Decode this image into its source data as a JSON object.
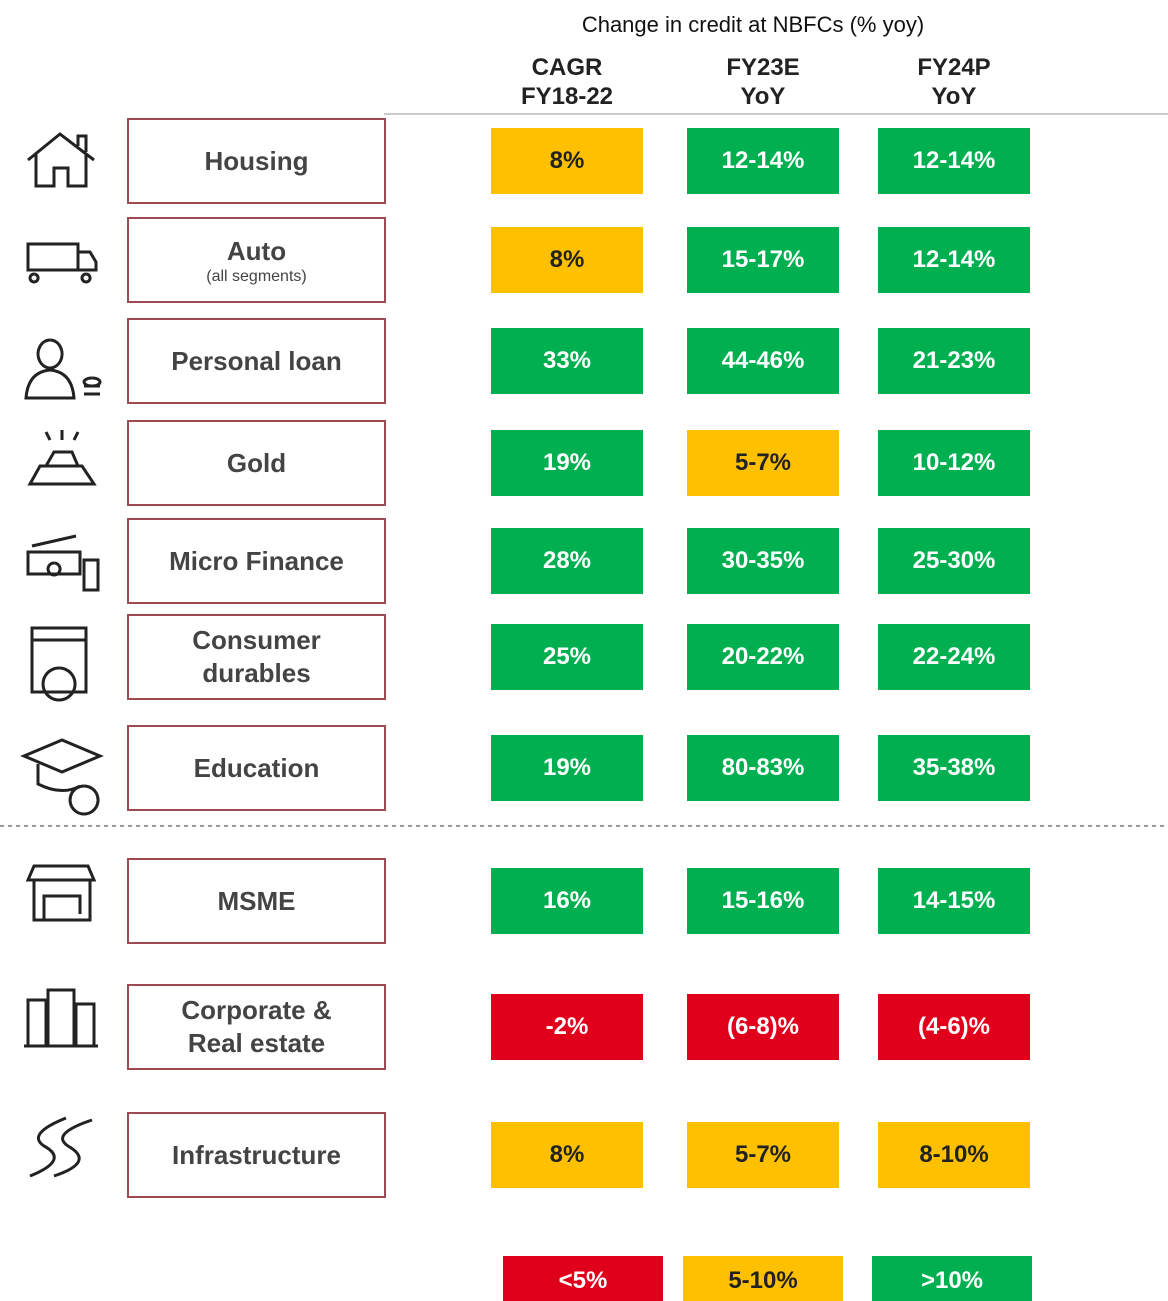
{
  "header": {
    "title": "Change in credit at NBFCs (% yoy)"
  },
  "columns": [
    [
      "CAGR",
      "FY18-22"
    ],
    [
      "FY23E",
      "YoY"
    ],
    [
      "FY24P",
      "YoY"
    ]
  ],
  "rows": [
    {
      "label": [
        "Housing"
      ],
      "cells": [
        {
          "text": "8%",
          "color": "#ffc000"
        },
        {
          "text": "12-14%",
          "color": "#00b050"
        },
        {
          "text": "12-14%",
          "color": "#00b050"
        }
      ]
    },
    {
      "label": [
        "Auto"
      ],
      "sublabel": "(all segments)",
      "cells": [
        {
          "text": "8%",
          "color": "#ffc000"
        },
        {
          "text": "15-17%",
          "color": "#00b050"
        },
        {
          "text": "12-14%",
          "color": "#00b050"
        }
      ]
    },
    {
      "label": [
        "Personal loan"
      ],
      "cells": [
        {
          "text": "33%",
          "color": "#00b050"
        },
        {
          "text": "44-46%",
          "color": "#00b050"
        },
        {
          "text": "21-23%",
          "color": "#00b050"
        }
      ]
    },
    {
      "label": [
        "Gold"
      ],
      "cells": [
        {
          "text": "19%",
          "color": "#00b050"
        },
        {
          "text": "5-7%",
          "color": "#ffc000"
        },
        {
          "text": "10-12%",
          "color": "#00b050"
        }
      ]
    },
    {
      "label": [
        "Micro Finance"
      ],
      "cells": [
        {
          "text": "28%",
          "color": "#00b050"
        },
        {
          "text": "30-35%",
          "color": "#00b050"
        },
        {
          "text": "25-30%",
          "color": "#00b050"
        }
      ]
    },
    {
      "label": [
        "Consumer",
        "durables"
      ],
      "cells": [
        {
          "text": "25%",
          "color": "#00b050"
        },
        {
          "text": "20-22%",
          "color": "#00b050"
        },
        {
          "text": "22-24%",
          "color": "#00b050"
        }
      ]
    },
    {
      "label": [
        "Education"
      ],
      "cells": [
        {
          "text": "19%",
          "color": "#00b050"
        },
        {
          "text": "80-83%",
          "color": "#00b050"
        },
        {
          "text": "35-38%",
          "color": "#00b050"
        }
      ]
    },
    {
      "label": [
        "MSME"
      ],
      "cells": [
        {
          "text": "16%",
          "color": "#00b050"
        },
        {
          "text": "15-16%",
          "color": "#00b050"
        },
        {
          "text": "14-15%",
          "color": "#00b050"
        }
      ]
    },
    {
      "label": [
        "Corporate &",
        "Real estate"
      ],
      "cells": [
        {
          "text": "-2%",
          "color": "#e0001b"
        },
        {
          "text": "(6-8)%",
          "color": "#e0001b"
        },
        {
          "text": "(4-6)%",
          "color": "#e0001b"
        }
      ]
    },
    {
      "label": [
        "Infrastructure"
      ],
      "cells": [
        {
          "text": "8%",
          "color": "#ffc000"
        },
        {
          "text": "5-7%",
          "color": "#ffc000"
        },
        {
          "text": "8-10%",
          "color": "#ffc000"
        }
      ]
    }
  ],
  "legend": [
    {
      "text": "<5%",
      "color": "#e0001b"
    },
    {
      "text": "5-10%",
      "color": "#ffc000"
    },
    {
      "text": ">10%",
      "color": "#00b050"
    }
  ]
}
